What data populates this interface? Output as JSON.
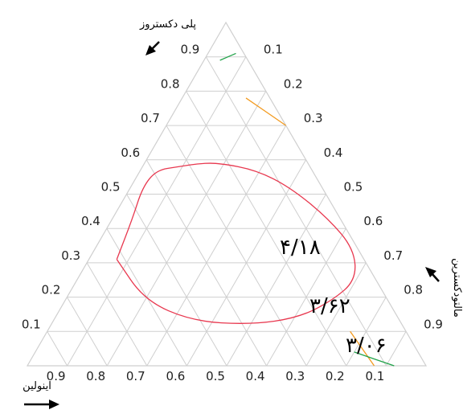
{
  "chart_data": {
    "type": "ternary-contour",
    "axes": {
      "top": {
        "label": "پلی دکستروز",
        "ticks": [
          "0.1",
          "0.2",
          "0.3",
          "0.4",
          "0.5",
          "0.6",
          "0.7",
          "0.8",
          "0.9"
        ]
      },
      "left": {
        "label": "",
        "ticks": [
          "0.9",
          "0.8",
          "0.7",
          "0.6",
          "0.5",
          "0.4",
          "0.3",
          "0.2",
          "0.1"
        ]
      },
      "right": {
        "label": "مالتودکسترین",
        "ticks": [
          "0.1",
          "0.2",
          "0.3",
          "0.4",
          "0.5",
          "0.6",
          "0.7",
          "0.8",
          "0.9"
        ]
      },
      "bottom": {
        "label": "اینولین",
        "ticks": [
          "0.9",
          "0.8",
          "0.7",
          "0.6",
          "0.5",
          "0.4",
          "0.3",
          "0.2",
          "0.1"
        ]
      }
    },
    "grid": true,
    "series": [
      {
        "name": "۴/۱۸",
        "color": "#e8384f",
        "points": [
          [
            0.31,
            0.62,
            0.07
          ],
          [
            0.43,
            0.52,
            0.05
          ],
          [
            0.52,
            0.45,
            0.03
          ],
          [
            0.57,
            0.39,
            0.04
          ],
          [
            0.58,
            0.33,
            0.09
          ],
          [
            0.59,
            0.27,
            0.14
          ],
          [
            0.59,
            0.22,
            0.19
          ],
          [
            0.57,
            0.14,
            0.29
          ],
          [
            0.52,
            0.08,
            0.4
          ],
          [
            0.43,
            0.03,
            0.54
          ],
          [
            0.34,
            0.01,
            0.65
          ],
          [
            0.25,
            0.05,
            0.7
          ],
          [
            0.19,
            0.14,
            0.67
          ],
          [
            0.14,
            0.25,
            0.61
          ],
          [
            0.12,
            0.38,
            0.5
          ],
          [
            0.13,
            0.52,
            0.35
          ],
          [
            0.19,
            0.61,
            0.2
          ],
          [
            0.31,
            0.62,
            0.07
          ]
        ]
      },
      {
        "name": "۳/۶۲",
        "color": "#f39a1e",
        "points": [
          [
            0.1,
            0.14,
            0.76
          ],
          [
            0.0,
            0.13,
            0.87
          ]
        ]
      },
      {
        "name": "۳/۶۲",
        "color": "#f39a1e",
        "points": [
          [
            0.78,
            0.06,
            0.16
          ],
          [
            0.7,
            0.0,
            0.3
          ]
        ]
      },
      {
        "name": "۳/۰۶",
        "color": "#22a34a",
        "points": [
          [
            0.91,
            0.02,
            0.07
          ],
          [
            0.89,
            0.07,
            0.04
          ]
        ]
      },
      {
        "name": "۳/۰۶",
        "color": "#22a34a",
        "points": [
          [
            0.04,
            0.16,
            0.8
          ],
          [
            0.0,
            0.08,
            0.92
          ]
        ]
      }
    ],
    "annotations": [
      "۴/۱۸",
      "۳/۶۲",
      "۳/۰۶"
    ],
    "colors": {
      "red": "#e8384f",
      "orange": "#f39a1e",
      "green": "#22a34a",
      "grid": "#cfcfcf"
    }
  }
}
